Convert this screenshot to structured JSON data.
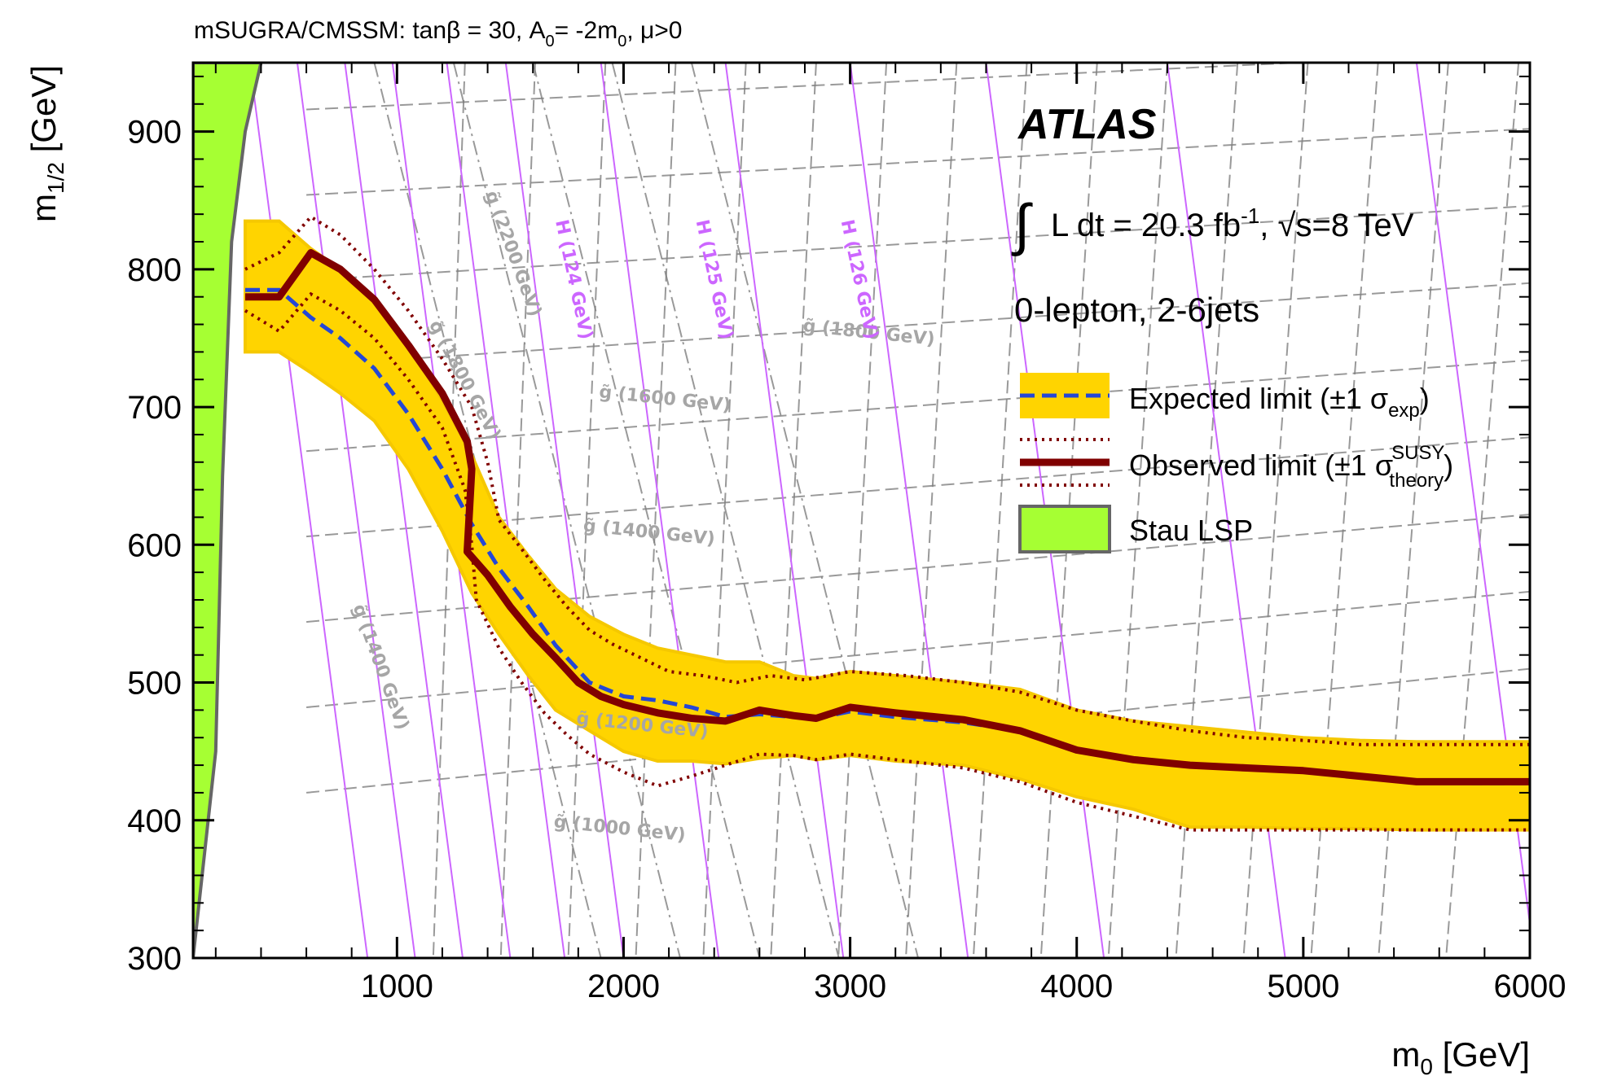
{
  "colors": {
    "band": "#ffd400",
    "band_edge": "#f5c800",
    "expected": "#2447d6",
    "observed": "#800000",
    "stau": "#a6ff33",
    "stau_edge": "#666666",
    "higgs": "#cc66ff",
    "contour": "#808080"
  },
  "chart_data": {
    "type": "area",
    "title": "mSUGRA/CMSSM: tanβ = 30, A0= -2m0, μ>0",
    "title_parts": {
      "pre": "mSUGRA/CMSSM: tanβ = 30, A",
      "sub": "0",
      "mid": "= -2m",
      "sub2": "0",
      "post": ", μ>0"
    },
    "xlabel": "m0 [GeV]",
    "xlabel_parts": {
      "main": "m",
      "sub": "0",
      "unit": " [GeV]"
    },
    "ylabel": "m1/2 [GeV]",
    "ylabel_parts": {
      "main": "m",
      "sub": "1/2",
      "unit": " [GeV]"
    },
    "xlim": [
      100,
      6000
    ],
    "ylim": [
      300,
      950
    ],
    "xticks": [
      1000,
      2000,
      3000,
      4000,
      5000,
      6000
    ],
    "yticks": [
      300,
      400,
      500,
      600,
      700,
      800,
      900
    ],
    "experiment": "ATLAS",
    "luminosity": {
      "integral": "∫",
      "text": "L dt = 20.3 fb",
      "sup": "-1",
      "energy": ", √s=8 TeV"
    },
    "channel": "0-lepton, 2-6jets",
    "legend": {
      "position": "top-right",
      "entries": [
        {
          "label": "Expected limit (±1 σ",
          "sub": "exp",
          "sup": "",
          "end": ")"
        },
        {
          "label": "Observed limit (±1 σ",
          "sub": "theory",
          "sup": "SUSY",
          "end": ")"
        },
        {
          "label": "Stau LSP",
          "sub": "",
          "sup": "",
          "end": ""
        }
      ]
    },
    "series": [
      {
        "name": "Expected limit",
        "style": "dashed",
        "x": [
          330,
          480,
          620,
          750,
          900,
          1050,
          1200,
          1330,
          1450,
          1580,
          1700,
          1850,
          2000,
          2150,
          2300,
          2450,
          2600,
          2750,
          2850,
          3000,
          3200,
          3500,
          3750,
          4000,
          4250,
          4500,
          4750,
          5000,
          5250,
          5500,
          5750,
          6000
        ],
        "y": [
          785,
          785,
          765,
          750,
          728,
          695,
          655,
          615,
          583,
          555,
          527,
          500,
          490,
          487,
          482,
          475,
          477,
          475,
          474,
          479,
          475,
          471,
          465,
          452,
          444,
          440,
          438,
          436,
          432,
          428,
          427,
          427
        ]
      },
      {
        "name": "Expected +1σ",
        "style": "band",
        "x": [
          330,
          480,
          620,
          750,
          900,
          1050,
          1200,
          1330,
          1450,
          1580,
          1700,
          1850,
          2000,
          2150,
          2300,
          2450,
          2600,
          2750,
          2850,
          3000,
          3200,
          3500,
          3750,
          4000,
          4250,
          4500,
          4750,
          5000,
          5250,
          5500,
          5750,
          6000
        ],
        "y": [
          835,
          835,
          815,
          800,
          780,
          745,
          705,
          665,
          620,
          592,
          568,
          548,
          535,
          525,
          520,
          515,
          515,
          505,
          503,
          508,
          505,
          500,
          495,
          480,
          472,
          468,
          464,
          460,
          458,
          457,
          457,
          457
        ]
      },
      {
        "name": "Expected -1σ",
        "style": "band",
        "x": [
          330,
          480,
          620,
          750,
          900,
          1050,
          1200,
          1330,
          1450,
          1580,
          1700,
          1850,
          2000,
          2150,
          2300,
          2450,
          2600,
          2750,
          2850,
          3000,
          3200,
          3500,
          3750,
          4000,
          4250,
          4500,
          4750,
          5000,
          5250,
          5500,
          5750,
          6000
        ],
        "y": [
          740,
          740,
          725,
          710,
          690,
          655,
          610,
          565,
          535,
          505,
          480,
          465,
          450,
          443,
          443,
          441,
          445,
          447,
          444,
          447,
          443,
          440,
          430,
          417,
          408,
          395,
          395,
          394,
          394,
          393,
          393,
          393
        ]
      },
      {
        "name": "Observed limit",
        "style": "solid",
        "x": [
          330,
          480,
          620,
          750,
          900,
          1050,
          1200,
          1310,
          1330,
          1310,
          1400,
          1500,
          1600,
          1700,
          1800,
          1900,
          2000,
          2150,
          2300,
          2450,
          2600,
          2750,
          2850,
          3000,
          3200,
          3500,
          3750,
          4000,
          4250,
          4500,
          4750,
          5000,
          5250,
          5500,
          5750,
          6000
        ],
        "y": [
          780,
          780,
          812,
          800,
          778,
          745,
          710,
          675,
          655,
          595,
          578,
          555,
          535,
          518,
          500,
          490,
          484,
          478,
          474,
          472,
          480,
          476,
          474,
          482,
          478,
          473,
          465,
          451,
          444,
          440,
          438,
          436,
          432,
          428,
          428,
          428
        ]
      },
      {
        "name": "Observed +1σ theory",
        "style": "dotted",
        "x": [
          330,
          480,
          620,
          750,
          900,
          1050,
          1200,
          1330,
          1400,
          1450,
          1550,
          1650,
          1750,
          1850,
          1950,
          2050,
          2200,
          2350,
          2500,
          2650,
          2800,
          3000,
          3250,
          3500,
          3750,
          4000,
          4250,
          4500,
          4750,
          5000,
          5250,
          5500,
          5750,
          6000
        ],
        "y": [
          800,
          812,
          838,
          825,
          800,
          770,
          735,
          700,
          660,
          618,
          597,
          575,
          555,
          538,
          528,
          520,
          508,
          505,
          500,
          505,
          502,
          508,
          505,
          500,
          493,
          480,
          472,
          465,
          460,
          458,
          455,
          455,
          455,
          455
        ]
      },
      {
        "name": "Observed -1σ theory",
        "style": "dotted",
        "x": [
          330,
          480,
          620,
          750,
          900,
          1050,
          1200,
          1300,
          1330,
          1350,
          1450,
          1550,
          1650,
          1750,
          1850,
          2000,
          2150,
          2300,
          2450,
          2600,
          2750,
          2850,
          3000,
          3200,
          3500,
          3750,
          4000,
          4250,
          4500,
          4750,
          5000,
          5250,
          5500,
          5750,
          6000
        ],
        "y": [
          770,
          755,
          782,
          770,
          750,
          720,
          685,
          640,
          600,
          560,
          525,
          500,
          478,
          462,
          448,
          435,
          425,
          432,
          440,
          448,
          447,
          444,
          448,
          444,
          438,
          428,
          413,
          403,
          393,
          393,
          393,
          393,
          393,
          393,
          393
        ]
      }
    ],
    "stau_region": {
      "x": [
        100,
        400,
        330,
        270,
        230,
        200,
        100
      ],
      "y": [
        950,
        950,
        900,
        820,
        650,
        450,
        300
      ]
    },
    "contour_labels": [
      {
        "text": "g̃ (2200 GeV)",
        "x": 1390,
        "y": 855,
        "angle": 70
      },
      {
        "text": "g̃ (1800 GeV)",
        "x": 1140,
        "y": 760,
        "angle": 62
      },
      {
        "text": "g̃ (1600 GeV)",
        "x": 1890,
        "y": 707,
        "angle": 6
      },
      {
        "text": "g̃ (1400 GeV)",
        "x": 1820,
        "y": 610,
        "angle": 6
      },
      {
        "text": "g̃ (1400 GeV)",
        "x": 805,
        "y": 555,
        "angle": 70
      },
      {
        "text": "g̃ (1200 GeV)",
        "x": 1790,
        "y": 470,
        "angle": 6
      },
      {
        "text": "g̃ (1800 GeV)",
        "x": 2790,
        "y": 755,
        "angle": 6
      },
      {
        "text": "g̃ (1000 GeV)",
        "x": 1690,
        "y": 395,
        "angle": 6
      }
    ],
    "higgs_contours": [
      {
        "label": "H (124 GeV)",
        "label_x": 1700,
        "label_y": 835
      },
      {
        "label": "H (125 GeV)",
        "label_x": 2320,
        "label_y": 835
      },
      {
        "label": "H (126 GeV)",
        "label_x": 2960,
        "label_y": 835
      }
    ]
  }
}
